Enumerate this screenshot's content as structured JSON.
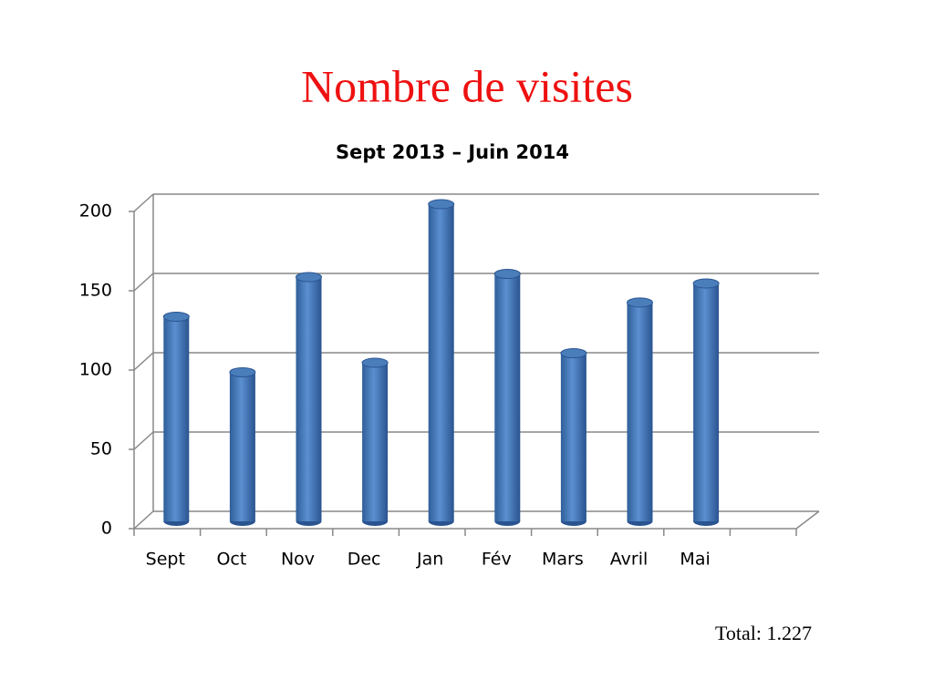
{
  "chart_data": {
    "type": "bar",
    "title": "Nombre de visites",
    "subtitle": "Sept 2013 – Juin 2014",
    "annotation": "Total:  1.227",
    "categories": [
      "Sept",
      "Oct",
      "Nov",
      "Dec",
      "Jan",
      "Fév",
      "Mars",
      "Avril",
      "Mai",
      null
    ],
    "values": [
      129,
      94,
      154,
      100,
      200,
      156,
      106,
      138,
      150,
      null
    ],
    "color": "#4a7ebb",
    "ylim": [
      0,
      200
    ],
    "yticks": [
      0,
      50,
      100,
      150,
      200
    ],
    "grid": true
  }
}
